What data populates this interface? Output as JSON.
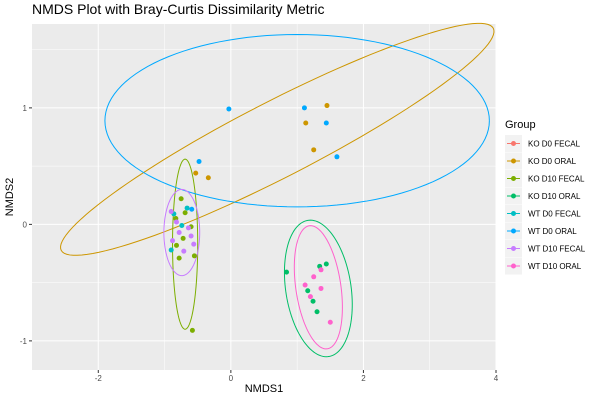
{
  "chart_data": {
    "type": "scatter",
    "title": "NMDS Plot with Bray-Curtis Dissimilarity Metric",
    "xlabel": "NMDS1",
    "ylabel": "NMDS2",
    "xlim": [
      -3.0,
      4.0
    ],
    "ylim": [
      -1.25,
      1.72
    ],
    "x_ticks": [
      -2,
      0,
      2,
      4
    ],
    "y_ticks": [
      -1,
      0,
      1
    ],
    "grid": true,
    "legend_title": "Group",
    "legend_position": "right",
    "series": [
      {
        "name": "KO D0 FECAL",
        "color": "#F8766D",
        "points": []
      },
      {
        "name": "KO D0 ORAL",
        "color": "#CD9600",
        "points": [
          [
            1.45,
            1.02
          ],
          [
            1.13,
            0.87
          ],
          [
            1.25,
            0.64
          ],
          [
            -0.53,
            0.44
          ],
          [
            -0.34,
            0.4
          ]
        ],
        "ellipse": {
          "cx": 0.7,
          "cy": 0.73,
          "rx": 3.4,
          "ry": 0.35,
          "angle_deg": 16
        }
      },
      {
        "name": "KO D10 FECAL",
        "color": "#7CAE00",
        "points": [
          [
            -0.75,
            0.22
          ],
          [
            -0.69,
            0.1
          ],
          [
            -0.83,
            0.05
          ],
          [
            -0.6,
            -0.02
          ],
          [
            -0.72,
            -0.12
          ],
          [
            -0.82,
            -0.18
          ],
          [
            -0.55,
            -0.27
          ],
          [
            -0.78,
            -0.29
          ],
          [
            -0.58,
            -0.91
          ]
        ],
        "ellipse": {
          "cx": -0.69,
          "cy": -0.17,
          "rx": 0.19,
          "ry": 0.73,
          "angle_deg": 0
        }
      },
      {
        "name": "KO D10 ORAL",
        "color": "#00BE67",
        "points": [
          [
            1.44,
            -0.34
          ],
          [
            1.34,
            -0.36
          ],
          [
            0.84,
            -0.41
          ],
          [
            1.16,
            -0.57
          ],
          [
            1.24,
            -0.66
          ],
          [
            1.3,
            -0.75
          ]
        ],
        "ellipse": {
          "cx": 1.32,
          "cy": -0.55,
          "rx": 0.62,
          "ry": 0.47,
          "angle_deg": 120
        }
      },
      {
        "name": "WT D0 FECAL",
        "color": "#00BFC4",
        "points": [
          [
            -0.66,
            0.14
          ],
          [
            -0.86,
            0.09
          ],
          [
            -0.74,
            -0.01
          ],
          [
            -0.9,
            -0.22
          ]
        ]
      },
      {
        "name": "WT D0 ORAL",
        "color": "#00A9FF",
        "points": [
          [
            -0.03,
            0.99
          ],
          [
            1.11,
            1.0
          ],
          [
            1.44,
            0.87
          ],
          [
            1.6,
            0.58
          ],
          [
            -0.48,
            0.54
          ],
          [
            -0.59,
            0.13
          ]
        ],
        "ellipse": {
          "cx": 1.0,
          "cy": 0.89,
          "rx": 2.9,
          "ry": 0.74,
          "angle_deg": 0
        }
      },
      {
        "name": "WT D10 FECAL",
        "color": "#C77CFF",
        "points": [
          [
            -0.9,
            0.11
          ],
          [
            -0.82,
            0.02
          ],
          [
            -0.64,
            -0.03
          ],
          [
            -0.78,
            -0.07
          ],
          [
            -0.6,
            -0.1
          ],
          [
            -0.88,
            -0.14
          ],
          [
            -0.56,
            -0.17
          ],
          [
            -0.71,
            -0.23
          ]
        ],
        "ellipse": {
          "cx": -0.74,
          "cy": -0.07,
          "rx": 0.27,
          "ry": 0.37,
          "angle_deg": 0
        }
      },
      {
        "name": "WT D10 ORAL",
        "color": "#FF61CC",
        "points": [
          [
            1.36,
            -0.39
          ],
          [
            1.25,
            -0.45
          ],
          [
            1.12,
            -0.52
          ],
          [
            1.36,
            -0.55
          ],
          [
            1.2,
            -0.62
          ],
          [
            1.5,
            -0.84
          ]
        ],
        "ellipse": {
          "cx": 1.32,
          "cy": -0.54,
          "rx": 0.55,
          "ry": 0.33,
          "angle_deg": 110
        }
      }
    ]
  }
}
